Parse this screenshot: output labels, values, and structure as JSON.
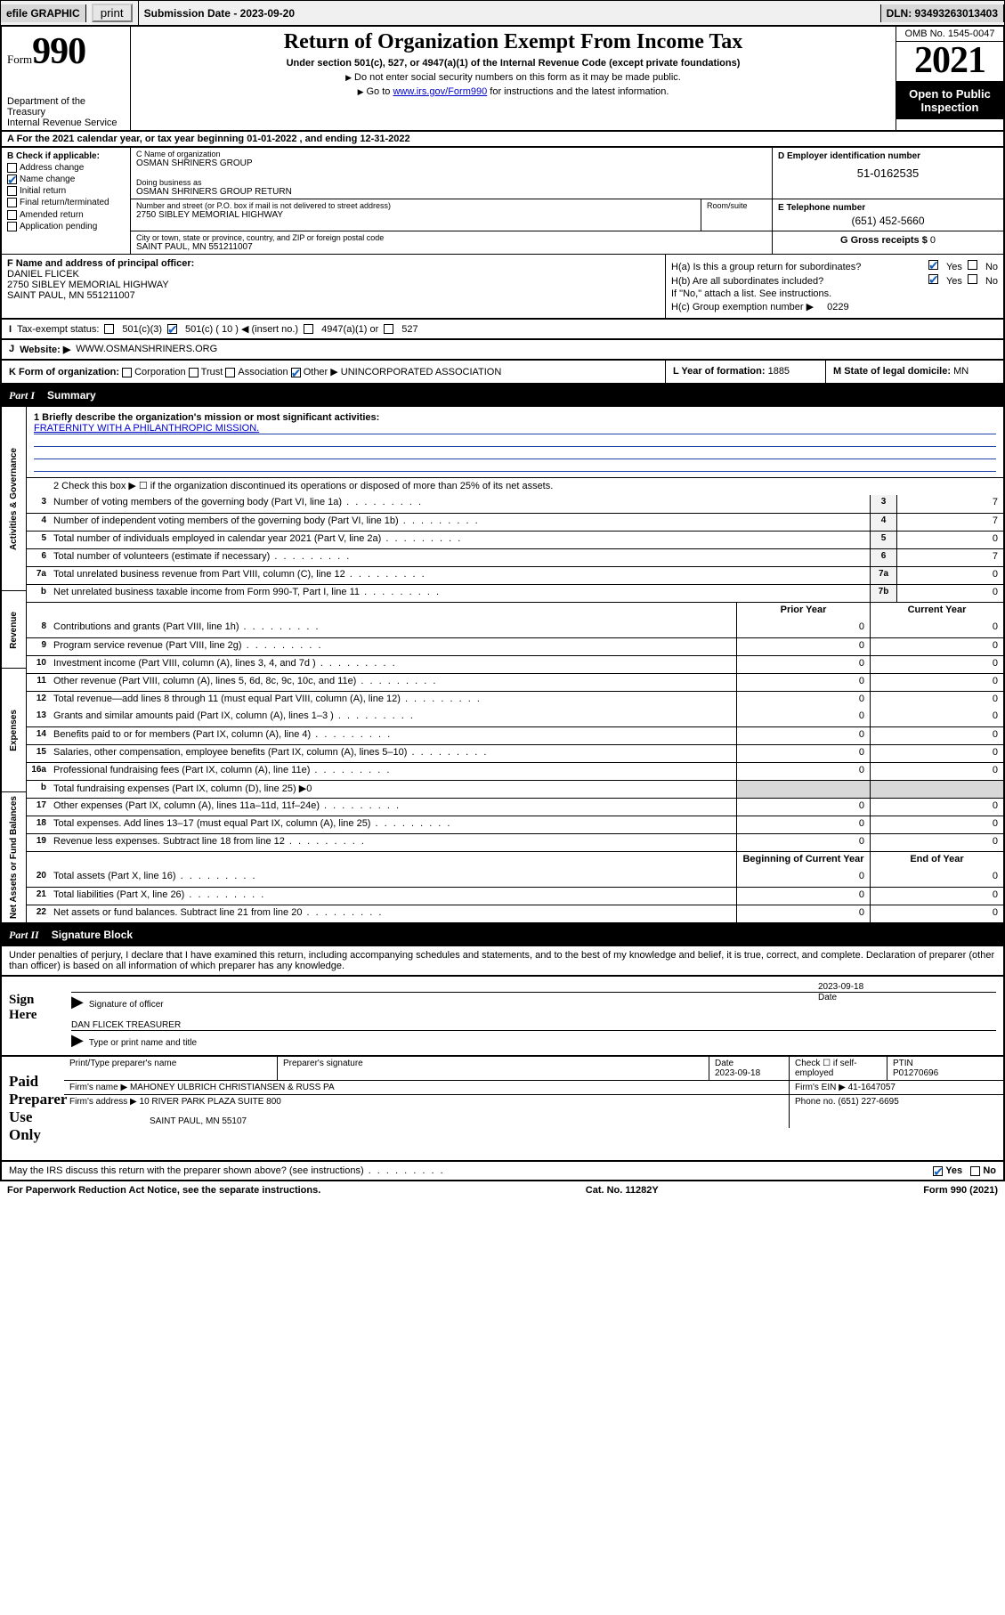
{
  "topbar": {
    "efile": "efile GRAPHIC",
    "print": "print",
    "subdate_label": "Submission Date - 2023-09-20",
    "dln": "DLN: 93493263013403"
  },
  "hdr": {
    "form_word": "Form",
    "form_num": "990",
    "dept": "Department of the Treasury\nInternal Revenue Service",
    "title": "Return of Organization Exempt From Income Tax",
    "sub1": "Under section 501(c), 527, or 4947(a)(1) of the Internal Revenue Code (except private foundations)",
    "sub2": "Do not enter social security numbers on this form as it may be made public.",
    "sub3_pre": "Go to ",
    "sub3_link": "www.irs.gov/Form990",
    "sub3_post": " for instructions and the latest information.",
    "omb": "OMB No. 1545-0047",
    "year": "2021",
    "openpub": "Open to Public Inspection"
  },
  "rowA": "A For the 2021 calendar year, or tax year beginning 01-01-2022   , and ending 12-31-2022",
  "B": {
    "label": "B Check if applicable:",
    "items": [
      "Address change",
      "Name change",
      "Initial return",
      "Final return/terminated",
      "Amended return",
      "Application pending"
    ],
    "checked": [
      false,
      true,
      false,
      false,
      false,
      false
    ]
  },
  "C": {
    "name_lbl": "C Name of organization",
    "name": "OSMAN SHRINERS GROUP",
    "dba_lbl": "Doing business as",
    "dba": "OSMAN SHRINERS GROUP RETURN",
    "street_lbl": "Number and street (or P.O. box if mail is not delivered to street address)",
    "room_lbl": "Room/suite",
    "street": "2750 SIBLEY MEMORIAL HIGHWAY",
    "city_lbl": "City or town, state or province, country, and ZIP or foreign postal code",
    "city": "SAINT PAUL, MN  551211007"
  },
  "D": {
    "lbl": "D Employer identification number",
    "val": "51-0162535"
  },
  "E": {
    "lbl": "E Telephone number",
    "val": "(651) 452-5660"
  },
  "G": {
    "lbl": "G Gross receipts $",
    "val": "0"
  },
  "F": {
    "lbl": "F Name and address of principal officer:",
    "name": "DANIEL FLICEK",
    "street": "2750 SIBLEY MEMORIAL HIGHWAY",
    "city": "SAINT PAUL, MN  551211007"
  },
  "H": {
    "a": "H(a)  Is this a group return for subordinates?",
    "b": "H(b)  Are all subordinates included?",
    "b2": "If \"No,\" attach a list. See instructions.",
    "c": "H(c)  Group exemption number ▶",
    "c_val": "0229",
    "yes": "Yes",
    "no": "No"
  },
  "I": {
    "lbl": "Tax-exempt status:",
    "opts": [
      "501(c)(3)",
      "501(c) ( 10 ) ◀ (insert no.)",
      "4947(a)(1) or",
      "527"
    ],
    "checked": [
      false,
      true,
      false,
      false
    ]
  },
  "J": {
    "lbl": "Website: ▶",
    "val": "WWW.OSMANSHRINERS.ORG"
  },
  "K": {
    "lbl": "K Form of organization:",
    "opts": [
      "Corporation",
      "Trust",
      "Association",
      "Other ▶"
    ],
    "checked": [
      false,
      false,
      false,
      true
    ],
    "other": "UNINCORPORATED ASSOCIATION"
  },
  "L": {
    "lbl": "L Year of formation:",
    "val": "1885"
  },
  "M": {
    "lbl": "M State of legal domicile:",
    "val": "MN"
  },
  "part1": {
    "num": "Part I",
    "title": "Summary"
  },
  "sidecats": [
    "Activities & Governance",
    "Revenue",
    "Expenses",
    "Net Assets or Fund Balances"
  ],
  "mission_lbl": "1  Briefly describe the organization's mission or most significant activities:",
  "mission": "FRATERNITY WITH A PHILANTHROPIC MISSION.",
  "line2": "2    Check this box ▶ ☐  if the organization discontinued its operations or disposed of more than 25% of its net assets.",
  "rows_gov": [
    {
      "n": "3",
      "t": "Number of voting members of the governing body (Part VI, line 1a)",
      "box": "3",
      "v": "7"
    },
    {
      "n": "4",
      "t": "Number of independent voting members of the governing body (Part VI, line 1b)",
      "box": "4",
      "v": "7"
    },
    {
      "n": "5",
      "t": "Total number of individuals employed in calendar year 2021 (Part V, line 2a)",
      "box": "5",
      "v": "0"
    },
    {
      "n": "6",
      "t": "Total number of volunteers (estimate if necessary)",
      "box": "6",
      "v": "7"
    },
    {
      "n": "7a",
      "t": "Total unrelated business revenue from Part VIII, column (C), line 12",
      "box": "7a",
      "v": "0"
    },
    {
      "n": "b",
      "t": "Net unrelated business taxable income from Form 990-T, Part I, line 11",
      "box": "7b",
      "v": "0"
    }
  ],
  "colhdr": {
    "prior": "Prior Year",
    "current": "Current Year"
  },
  "rows_rev": [
    {
      "n": "8",
      "t": "Contributions and grants (Part VIII, line 1h)",
      "p": "0",
      "c": "0"
    },
    {
      "n": "9",
      "t": "Program service revenue (Part VIII, line 2g)",
      "p": "0",
      "c": "0"
    },
    {
      "n": "10",
      "t": "Investment income (Part VIII, column (A), lines 3, 4, and 7d )",
      "p": "0",
      "c": "0"
    },
    {
      "n": "11",
      "t": "Other revenue (Part VIII, column (A), lines 5, 6d, 8c, 9c, 10c, and 11e)",
      "p": "0",
      "c": "0"
    },
    {
      "n": "12",
      "t": "Total revenue—add lines 8 through 11 (must equal Part VIII, column (A), line 12)",
      "p": "0",
      "c": "0"
    }
  ],
  "rows_exp": [
    {
      "n": "13",
      "t": "Grants and similar amounts paid (Part IX, column (A), lines 1–3 )",
      "p": "0",
      "c": "0"
    },
    {
      "n": "14",
      "t": "Benefits paid to or for members (Part IX, column (A), line 4)",
      "p": "0",
      "c": "0"
    },
    {
      "n": "15",
      "t": "Salaries, other compensation, employee benefits (Part IX, column (A), lines 5–10)",
      "p": "0",
      "c": "0"
    },
    {
      "n": "16a",
      "t": "Professional fundraising fees (Part IX, column (A), line 11e)",
      "p": "0",
      "c": "0"
    },
    {
      "n": "b",
      "t": "Total fundraising expenses (Part IX, column (D), line 25) ▶0",
      "p": "",
      "c": "",
      "shade": true
    },
    {
      "n": "17",
      "t": "Other expenses (Part IX, column (A), lines 11a–11d, 11f–24e)",
      "p": "0",
      "c": "0"
    },
    {
      "n": "18",
      "t": "Total expenses. Add lines 13–17 (must equal Part IX, column (A), line 25)",
      "p": "0",
      "c": "0"
    },
    {
      "n": "19",
      "t": "Revenue less expenses. Subtract line 18 from line 12",
      "p": "0",
      "c": "0"
    }
  ],
  "colhdr2": {
    "begin": "Beginning of Current Year",
    "end": "End of Year"
  },
  "rows_net": [
    {
      "n": "20",
      "t": "Total assets (Part X, line 16)",
      "p": "0",
      "c": "0"
    },
    {
      "n": "21",
      "t": "Total liabilities (Part X, line 26)",
      "p": "0",
      "c": "0"
    },
    {
      "n": "22",
      "t": "Net assets or fund balances. Subtract line 21 from line 20",
      "p": "0",
      "c": "0"
    }
  ],
  "part2": {
    "num": "Part II",
    "title": "Signature Block"
  },
  "sig_decl": "Under penalties of perjury, I declare that I have examined this return, including accompanying schedules and statements, and to the best of my knowledge and belief, it is true, correct, and complete. Declaration of preparer (other than officer) is based on all information of which preparer has any knowledge.",
  "sign": {
    "here": "Sign Here",
    "sigoff": "Signature of officer",
    "date": "Date",
    "dateval": "2023-09-18",
    "name": "DAN FLICEK  TREASURER",
    "typelbl": "Type or print name and title"
  },
  "prep": {
    "label": "Paid Preparer Use Only",
    "h1": "Print/Type preparer's name",
    "h2": "Preparer's signature",
    "h3": "Date",
    "h3v": "2023-09-18",
    "h4": "Check ☐ if self-employed",
    "h5": "PTIN",
    "h5v": "P01270696",
    "firm_lbl": "Firm's name    ▶",
    "firm": "MAHONEY ULBRICH CHRISTIANSEN & RUSS PA",
    "ein_lbl": "Firm's EIN ▶",
    "ein": "41-1647057",
    "addr_lbl": "Firm's address ▶",
    "addr1": "10 RIVER PARK PLAZA SUITE 800",
    "addr2": "SAINT PAUL, MN  55107",
    "phone_lbl": "Phone no.",
    "phone": "(651) 227-6695"
  },
  "discuss": "May the IRS discuss this return with the preparer shown above? (see instructions)",
  "footer": {
    "l": "For Paperwork Reduction Act Notice, see the separate instructions.",
    "m": "Cat. No. 11282Y",
    "r": "Form 990 (2021)"
  }
}
